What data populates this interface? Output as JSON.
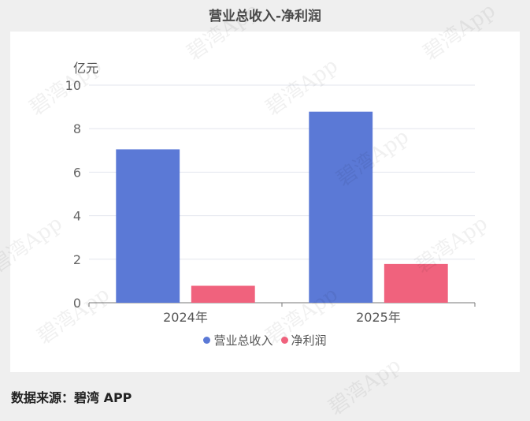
{
  "title": "营业总收入-净利润",
  "unit": "亿元",
  "source": "数据来源：碧湾 APP",
  "watermark": "碧湾App",
  "colors": {
    "revenue": "#5b79d6",
    "profit": "#f0627d"
  },
  "chart_data": {
    "type": "bar",
    "title": "营业总收入-净利润",
    "ylabel": "亿元",
    "categories": [
      "2024年",
      "2025年"
    ],
    "series": [
      {
        "name": "营业总收入",
        "values": [
          7.05,
          8.78
        ]
      },
      {
        "name": "净利润",
        "values": [
          0.78,
          1.78
        ]
      }
    ],
    "ylim": [
      0,
      10
    ],
    "yticks": [
      0,
      2,
      4,
      6,
      8,
      10
    ],
    "grid": true,
    "legend": "bottom"
  }
}
